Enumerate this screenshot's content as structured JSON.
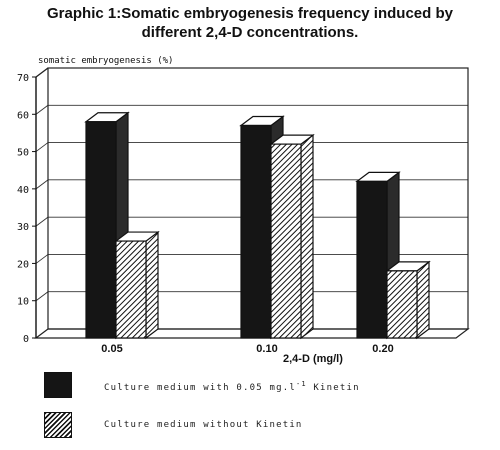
{
  "title_line1": "Graphic 1:Somatic embryogenesis frequency induced by",
  "title_line2": "different 2,4-D concentrations.",
  "chart_data": {
    "type": "bar",
    "title": "Graphic 1:Somatic embryogenesis frequency induced by different 2,4-D concentrations.",
    "ylabel": "somatic embryogenesis (%)",
    "xlabel": "2,4-D (mg/l)",
    "categories": [
      "0.05",
      "0.10",
      "0.20"
    ],
    "yticks": [
      "0",
      "10",
      "20",
      "30",
      "40",
      "50",
      "60",
      "70"
    ],
    "ylim": [
      0,
      70
    ],
    "grid": true,
    "style": "3d",
    "series": [
      {
        "name": "Culture medium with 0.05 mg.l-1 Kinetin",
        "values": [
          58,
          57,
          42
        ],
        "fill": "solid",
        "color": "#151515"
      },
      {
        "name": "Culture medium without Kinetin",
        "values": [
          26,
          52,
          18
        ],
        "fill": "hatched",
        "color": "#111111"
      }
    ],
    "legend_position": "bottom-left"
  },
  "legend": {
    "item1_text": "Culture medium with 0.05 mg.l",
    "item1_superscript": "-1",
    "item1_suffix": "Kinetin",
    "item2_text": "Culture medium without Kinetin"
  }
}
